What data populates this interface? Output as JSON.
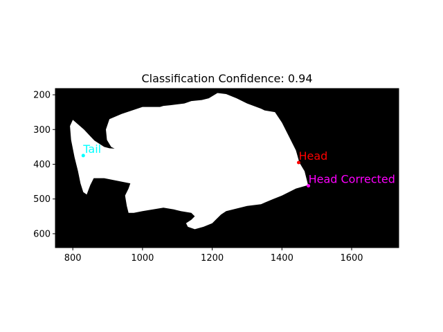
{
  "chart_data": {
    "type": "image-annotation",
    "title": "Classification Confidence: 0.94",
    "xlim": [
      750,
      1735
    ],
    "ylim": [
      640,
      182
    ],
    "x_ticks": [
      800,
      1000,
      1200,
      1400,
      1600
    ],
    "y_ticks": [
      200,
      300,
      400,
      500,
      600
    ],
    "grid": false,
    "background_color": "#000000",
    "silhouette_color": "#ffffff",
    "silhouette_outline": [
      [
        800,
        272
      ],
      [
        832,
        300
      ],
      [
        862,
        332
      ],
      [
        890,
        350
      ],
      [
        905,
        354
      ],
      [
        920,
        355
      ],
      [
        910,
        350
      ],
      [
        898,
        330
      ],
      [
        895,
        300
      ],
      [
        905,
        270
      ],
      [
        940,
        255
      ],
      [
        1000,
        235
      ],
      [
        1050,
        235
      ],
      [
        1060,
        232
      ],
      [
        1080,
        230
      ],
      [
        1120,
        225
      ],
      [
        1140,
        218
      ],
      [
        1170,
        215
      ],
      [
        1190,
        210
      ],
      [
        1215,
        195
      ],
      [
        1240,
        198
      ],
      [
        1270,
        210
      ],
      [
        1300,
        225
      ],
      [
        1340,
        240
      ],
      [
        1350,
        245
      ],
      [
        1380,
        250
      ],
      [
        1400,
        280
      ],
      [
        1420,
        320
      ],
      [
        1440,
        360
      ],
      [
        1450,
        395
      ],
      [
        1465,
        420
      ],
      [
        1475,
        460
      ],
      [
        1440,
        470
      ],
      [
        1400,
        490
      ],
      [
        1375,
        500
      ],
      [
        1340,
        515
      ],
      [
        1300,
        520
      ],
      [
        1240,
        535
      ],
      [
        1225,
        545
      ],
      [
        1210,
        560
      ],
      [
        1200,
        570
      ],
      [
        1175,
        580
      ],
      [
        1150,
        587
      ],
      [
        1130,
        580
      ],
      [
        1125,
        570
      ],
      [
        1140,
        560
      ],
      [
        1150,
        550
      ],
      [
        1140,
        540
      ],
      [
        1110,
        535
      ],
      [
        1090,
        530
      ],
      [
        1060,
        525
      ],
      [
        1030,
        530
      ],
      [
        1000,
        535
      ],
      [
        975,
        540
      ],
      [
        960,
        540
      ],
      [
        955,
        520
      ],
      [
        950,
        490
      ],
      [
        960,
        470
      ],
      [
        965,
        455
      ],
      [
        940,
        450
      ],
      [
        890,
        440
      ],
      [
        860,
        440
      ],
      [
        850,
        460
      ],
      [
        840,
        487
      ],
      [
        830,
        480
      ],
      [
        822,
        455
      ],
      [
        815,
        420
      ],
      [
        805,
        380
      ],
      [
        795,
        330
      ],
      [
        792,
        290
      ]
    ],
    "points": [
      {
        "label": "Tail",
        "x": 830,
        "y": 375,
        "color": "#00ffff"
      },
      {
        "label": "Head",
        "x": 1448,
        "y": 395,
        "color": "#ff0000"
      },
      {
        "label": "Head Corrected",
        "x": 1476,
        "y": 462,
        "color": "#ff00ff"
      }
    ]
  }
}
